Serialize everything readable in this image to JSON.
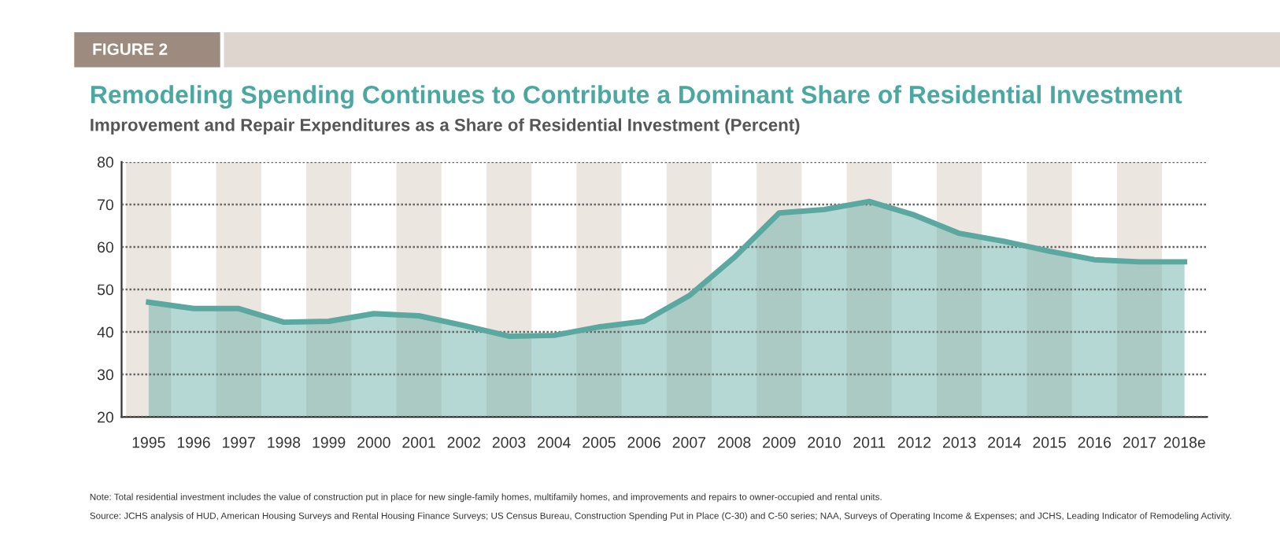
{
  "chart_data": {
    "type": "area",
    "title": "Remodeling Spending Continues to Contribute a Dominant Share of Residential Investment",
    "subtitle": "Improvement and Repair Expenditures as a Share of Residential Investment (Percent)",
    "categories": [
      "1995",
      "1996",
      "1997",
      "1998",
      "1999",
      "2000",
      "2001",
      "2002",
      "2003",
      "2004",
      "2005",
      "2006",
      "2007",
      "2008",
      "2009",
      "2010",
      "2011",
      "2012",
      "2013",
      "2014",
      "2015",
      "2016",
      "2017",
      "2018e"
    ],
    "series": [
      {
        "color": "#5aa8a0",
        "values": [
          47,
          45.5,
          45.5,
          42.3,
          42.5,
          44.3,
          43.8,
          41.5,
          39,
          39.2,
          41.2,
          42.5,
          48.5,
          57.5,
          68,
          68.8,
          70.7,
          67.5,
          63.2,
          61.3,
          59,
          57,
          56.5,
          56.5
        ]
      }
    ],
    "bands": [
      {
        "axis": "x",
        "from": "1995",
        "to": "1995",
        "color": "#ece6e1"
      },
      {
        "axis": "x",
        "from": "1997",
        "to": "1997",
        "color": "#ece6e1"
      },
      {
        "axis": "x",
        "from": "1999",
        "to": "1999",
        "color": "#ece6e1"
      },
      {
        "axis": "x",
        "from": "2001",
        "to": "2001",
        "color": "#ece6e1"
      },
      {
        "axis": "x",
        "from": "2003",
        "to": "2003",
        "color": "#ece6e1"
      },
      {
        "axis": "x",
        "from": "2005",
        "to": "2005",
        "color": "#ece6e1"
      },
      {
        "axis": "x",
        "from": "2007",
        "to": "2007",
        "color": "#ece6e1"
      },
      {
        "axis": "x",
        "from": "2009",
        "to": "2009",
        "color": "#ece6e1"
      },
      {
        "axis": "x",
        "from": "2011",
        "to": "2011",
        "color": "#ece6e1"
      },
      {
        "axis": "x",
        "from": "2013",
        "to": "2013",
        "color": "#ece6e1"
      },
      {
        "axis": "x",
        "from": "2015",
        "to": "2015",
        "color": "#ece6e1"
      },
      {
        "axis": "x",
        "from": "2017",
        "to": "2017",
        "color": "#ece6e1"
      }
    ],
    "ylim": [
      20,
      80
    ],
    "yticks": [
      20,
      30,
      40,
      50,
      60,
      70,
      80
    ],
    "grid": "y",
    "legend": false,
    "annotations": [
      "FIGURE 2",
      "Note: Total residential investment includes the value of construction put in place for new single-family homes, multifamily homes, and improvements and repairs to owner-occupied and rental units.",
      "Source: JCHS analysis of HUD, American Housing Surveys and Rental Housing Finance Surveys; US Census Bureau, Construction Spending Put in Place (C-30) and C-50 series; NAA, Surveys of Operating Income & Expenses; and JCHS, Leading Indicator of Remodeling Activity."
    ]
  }
}
